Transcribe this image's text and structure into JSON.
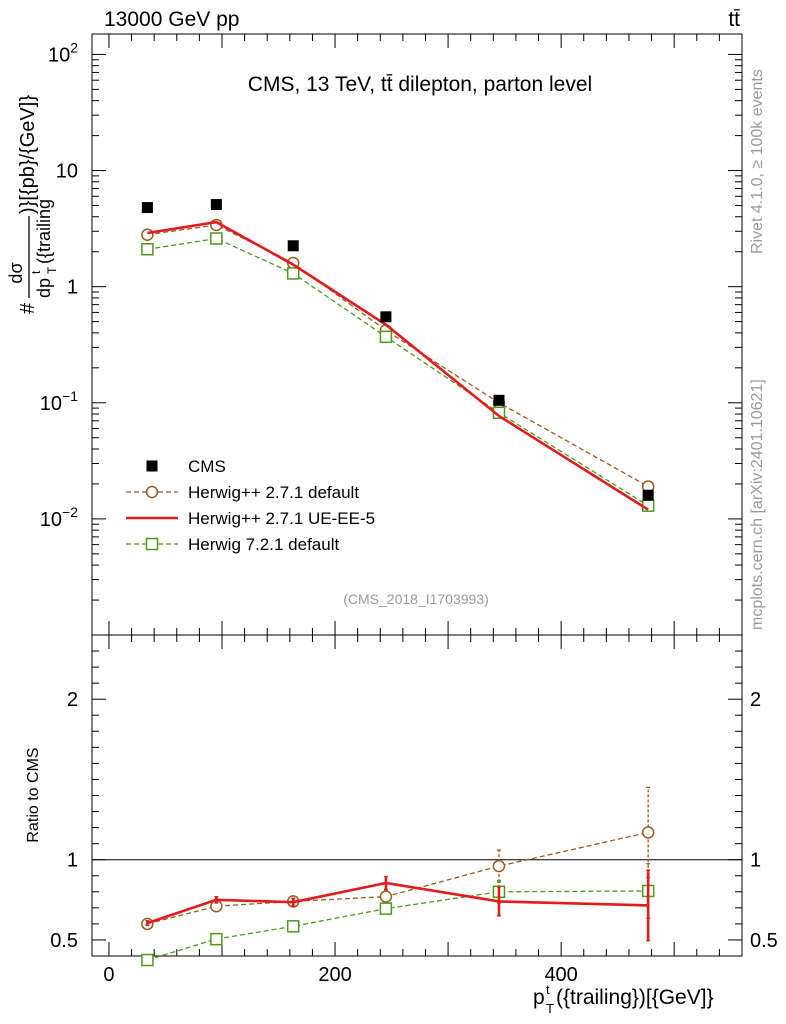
{
  "header": {
    "beam": "13000 GeV pp",
    "process": "tt̄"
  },
  "side_labels": {
    "rivet": "Rivet 4.1.0, ≥ 100k events",
    "mcplots": "mcplots.cern.ch [arXiv:2401.10621]"
  },
  "colors": {
    "data": "#000000",
    "herwigpp_default": "#a0581c",
    "herwigpp_ueee5": "#e41a1c",
    "herwig7_default": "#4a9a1e",
    "watermark": "#999999"
  },
  "chart_data": [
    {
      "type": "line",
      "panel": "main",
      "title": "CMS, 13 TeV, tt̄ dilepton, parton level",
      "analysis_id": "(CMS_2018_I1703993)",
      "ylabel": "# dσ / dp_T^t({trailing}) ){[pb}/{GeV]}",
      "ylabel_parts": {
        "hash": "#",
        "num": "dσ",
        "den": "dp",
        "den_sup": "t",
        "den_sub": "T",
        "den_rest": "({trailing",
        "tail": ")}[{pb}/{GeV]}"
      },
      "yscale": "log",
      "ylim": [
        0.001,
        150
      ],
      "y_ticks": [
        {
          "value": 0.01,
          "base": "10",
          "exp": "−2"
        },
        {
          "value": 0.1,
          "base": "10",
          "exp": "−1"
        },
        {
          "value": 1,
          "base": "1",
          "exp": ""
        },
        {
          "value": 10,
          "base": "10",
          "exp": ""
        },
        {
          "value": 100,
          "base": "10",
          "exp": "2"
        }
      ],
      "xlim": [
        -15,
        560
      ],
      "legend_position": "lower-left",
      "series": [
        {
          "name": "CMS",
          "style": "data",
          "x": [
            34,
            95,
            163,
            245,
            345,
            477
          ],
          "y": [
            4.8,
            5.1,
            2.25,
            0.55,
            0.105,
            0.016
          ]
        },
        {
          "name": "Herwig++ 2.7.1 default",
          "style": "herwigpp_default",
          "x": [
            34,
            95,
            163,
            245,
            345,
            477
          ],
          "y": [
            2.8,
            3.4,
            1.6,
            0.42,
            0.1,
            0.019
          ]
        },
        {
          "name": "Herwig++ 2.7.1 UE-EE-5",
          "style": "herwigpp_ueee5",
          "x": [
            34,
            95,
            163,
            245,
            345,
            477
          ],
          "y": [
            2.9,
            3.6,
            1.55,
            0.47,
            0.077,
            0.012
          ]
        },
        {
          "name": "Herwig 7.2.1 default",
          "style": "herwig7_default",
          "x": [
            34,
            95,
            163,
            245,
            345,
            477
          ],
          "y": [
            2.1,
            2.6,
            1.3,
            0.37,
            0.082,
            0.013
          ]
        }
      ]
    },
    {
      "type": "line",
      "panel": "ratio",
      "ylabel": "Ratio to CMS",
      "xlabel": "p_T^t({trailing})[{GeV]}",
      "xlabel_parts": {
        "p": "p",
        "sup": "t",
        "sub": "T",
        "rest": "({trailing})[{GeV]}"
      },
      "xlim": [
        -15,
        560
      ],
      "x_ticks": [
        0,
        200,
        400
      ],
      "ylim": [
        0.4,
        2.4
      ],
      "y_ticks": [
        0.5,
        1,
        2
      ],
      "reference_line": 1,
      "series": [
        {
          "name": "Herwig++ 2.7.1 default",
          "style": "herwigpp_default",
          "x": [
            34,
            95,
            163,
            245,
            345,
            477
          ],
          "y": [
            0.6,
            0.71,
            0.74,
            0.77,
            0.96,
            1.17
          ],
          "err": [
            0.01,
            0.02,
            0.02,
            0.04,
            0.1,
            0.28
          ]
        },
        {
          "name": "Herwig++ 2.7.1 UE-EE-5",
          "style": "herwigpp_ueee5",
          "x": [
            34,
            95,
            163,
            245,
            345,
            477
          ],
          "y": [
            0.605,
            0.75,
            0.735,
            0.855,
            0.74,
            0.715
          ],
          "err": [
            0.015,
            0.02,
            0.025,
            0.04,
            0.09,
            0.22
          ]
        },
        {
          "name": "Herwig 7.2.1 default",
          "style": "herwig7_default",
          "x": [
            34,
            95,
            163,
            245,
            345,
            477
          ],
          "y": [
            0.375,
            0.505,
            0.585,
            0.695,
            0.8,
            0.805
          ],
          "err": [
            0.005,
            0.01,
            0.01,
            0.03,
            0.07,
            0.17
          ]
        }
      ]
    }
  ]
}
